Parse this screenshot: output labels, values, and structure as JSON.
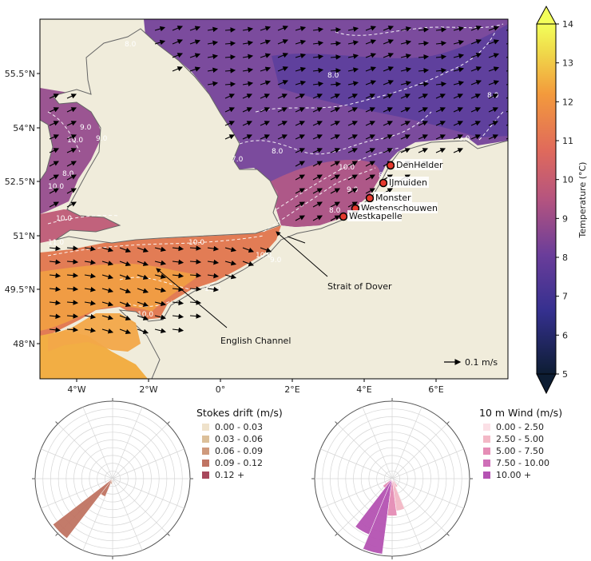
{
  "map": {
    "x_ticks": [
      "4°W",
      "2°W",
      "0°",
      "2°E",
      "4°E",
      "6°E"
    ],
    "y_ticks": [
      "55.5°N",
      "54°N",
      "52.5°N",
      "51°N",
      "49.5°N",
      "48°N"
    ],
    "contour_labels": [
      "8.0",
      "8.0",
      "8.0",
      "8.0",
      "6.0",
      "9.0",
      "10.0",
      "9.0",
      "8.0",
      "9.0",
      "10.0",
      "10.0",
      "10.0",
      "10.0",
      "10.0",
      "11.0",
      "10.0",
      "10.0",
      "9.0",
      "8.0",
      "8.0",
      "7.0"
    ],
    "stations": [
      {
        "name": "DenHelder"
      },
      {
        "name": "IJmuiden"
      },
      {
        "name": "Monster"
      },
      {
        "name": "Westenschouwen"
      },
      {
        "name": "Westkapelle"
      }
    ],
    "annotations": [
      "Strait of Dover",
      "English Channel"
    ],
    "quiver_key": "0.1 m/s"
  },
  "colorbar": {
    "label": "Temperature (°C)",
    "ticks": [
      "14",
      "13",
      "12",
      "11",
      "10",
      "9",
      "8",
      "7",
      "6",
      "5"
    ],
    "range": [
      5,
      14
    ],
    "colors": [
      "#0d1d33",
      "#35308f",
      "#6a3d9a",
      "#b5547f",
      "#e06a5b",
      "#f39a3c",
      "#f0d94a",
      "#f3ff5a"
    ]
  },
  "chart_data": [
    {
      "type": "rose",
      "title": "Stokes drift (m/s)",
      "legend": [
        {
          "label": "0.00 - 0.03",
          "color": "#efe2cb"
        },
        {
          "label": "0.03 - 0.06",
          "color": "#dcc09a"
        },
        {
          "label": "0.06 - 0.09",
          "color": "#cf9a7d"
        },
        {
          "label": "0.09 - 0.12",
          "color": "#c07463"
        },
        {
          "label": "0.12 +",
          "color": "#a8485c"
        }
      ],
      "petals": [
        {
          "dir_deg": 225,
          "bin": "0.09 - 0.12",
          "length_frac": 0.97
        },
        {
          "dir_deg": 210,
          "bin": "0.09 - 0.12",
          "length_frac": 0.25
        },
        {
          "dir_deg": 195,
          "bin": "0.06 - 0.09",
          "length_frac": 0.07
        }
      ]
    },
    {
      "type": "rose",
      "title": "10 m Wind (m/s)",
      "legend": [
        {
          "label": "0.00 - 2.50",
          "color": "#fbe0e6"
        },
        {
          "label": "2.50 - 5.00",
          "color": "#f3b8c6"
        },
        {
          "label": "5.00 - 7.50",
          "color": "#e58db6"
        },
        {
          "label": "7.50 - 10.00",
          "color": "#cf6fb8"
        },
        {
          "label": "10.00 +",
          "color": "#b553b3"
        }
      ],
      "petals": [
        {
          "dir_deg": 195,
          "bin": "10.00 +",
          "length_frac": 0.98
        },
        {
          "dir_deg": 210,
          "bin": "10.00 +",
          "length_frac": 0.78
        },
        {
          "dir_deg": 180,
          "bin": "5.00 - 7.50",
          "length_frac": 0.48
        },
        {
          "dir_deg": 165,
          "bin": "2.50 - 5.00",
          "length_frac": 0.42
        },
        {
          "dir_deg": 225,
          "bin": "5.00 - 7.50",
          "length_frac": 0.15
        },
        {
          "dir_deg": 150,
          "bin": "2.50 - 5.00",
          "length_frac": 0.12
        }
      ]
    }
  ]
}
